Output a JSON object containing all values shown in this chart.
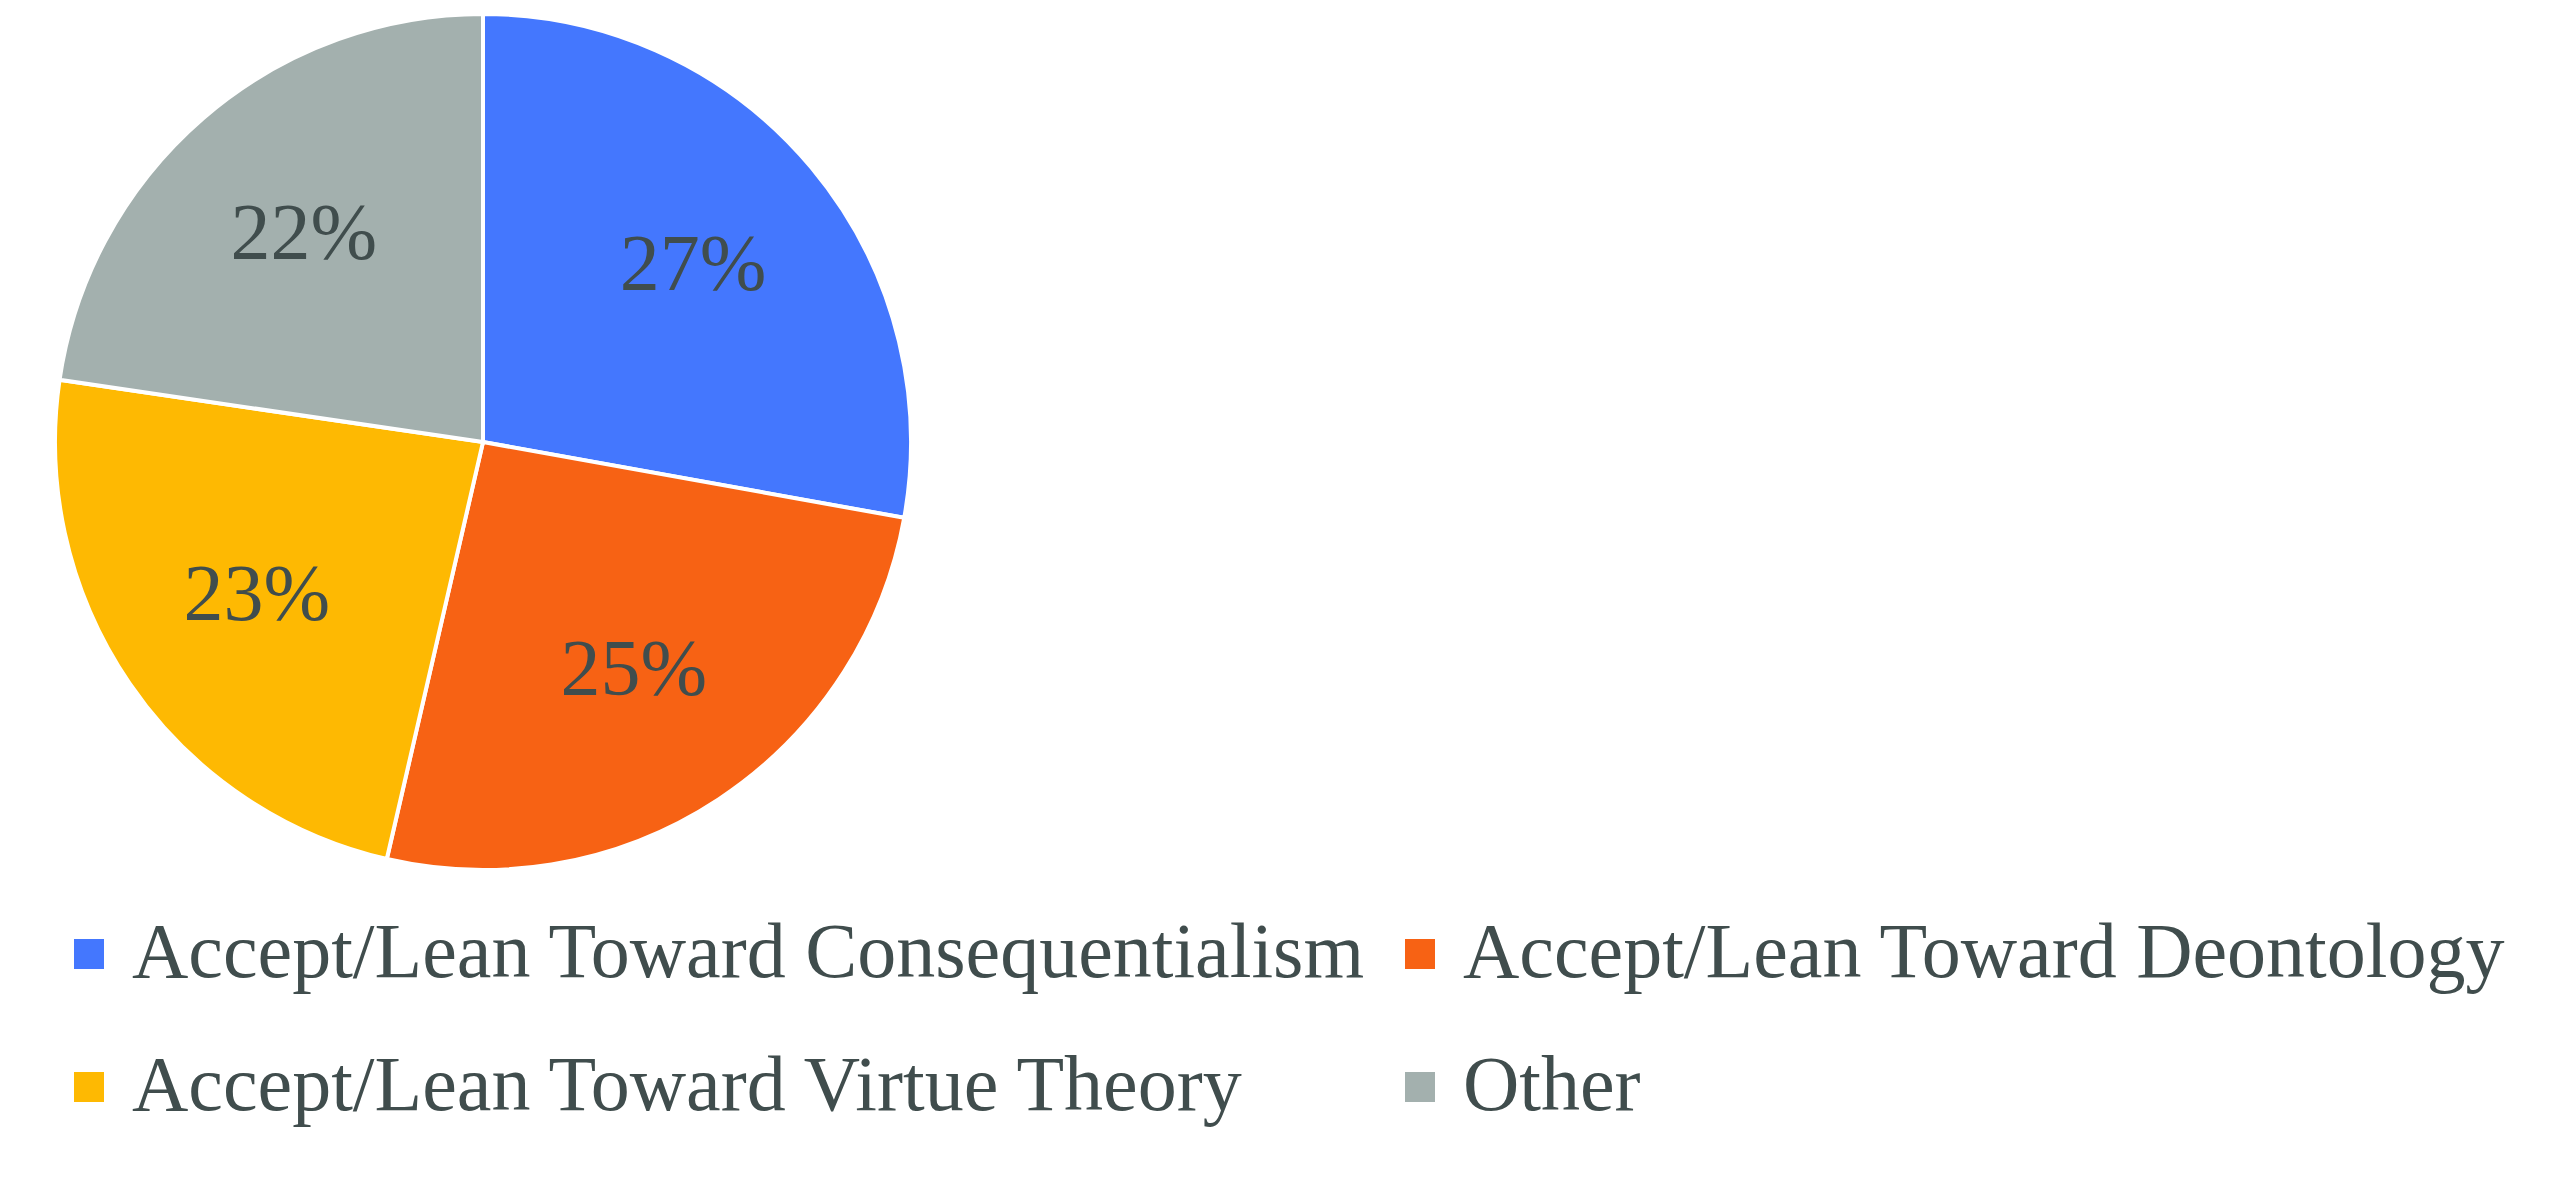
{
  "chart_data": {
    "type": "pie",
    "categories": [
      "Accept/Lean Toward Consequentialism",
      "Accept/Lean Toward Deontology",
      "Accept/Lean Toward Virtue Theory",
      "Other"
    ],
    "values": [
      27,
      25,
      23,
      22
    ],
    "colors": [
      "#4477fe",
      "#f76214",
      "#feb902",
      "#a3b0ae"
    ],
    "value_labels": [
      "27%",
      "25%",
      "23%",
      "22%"
    ],
    "legend": "bottom"
  }
}
